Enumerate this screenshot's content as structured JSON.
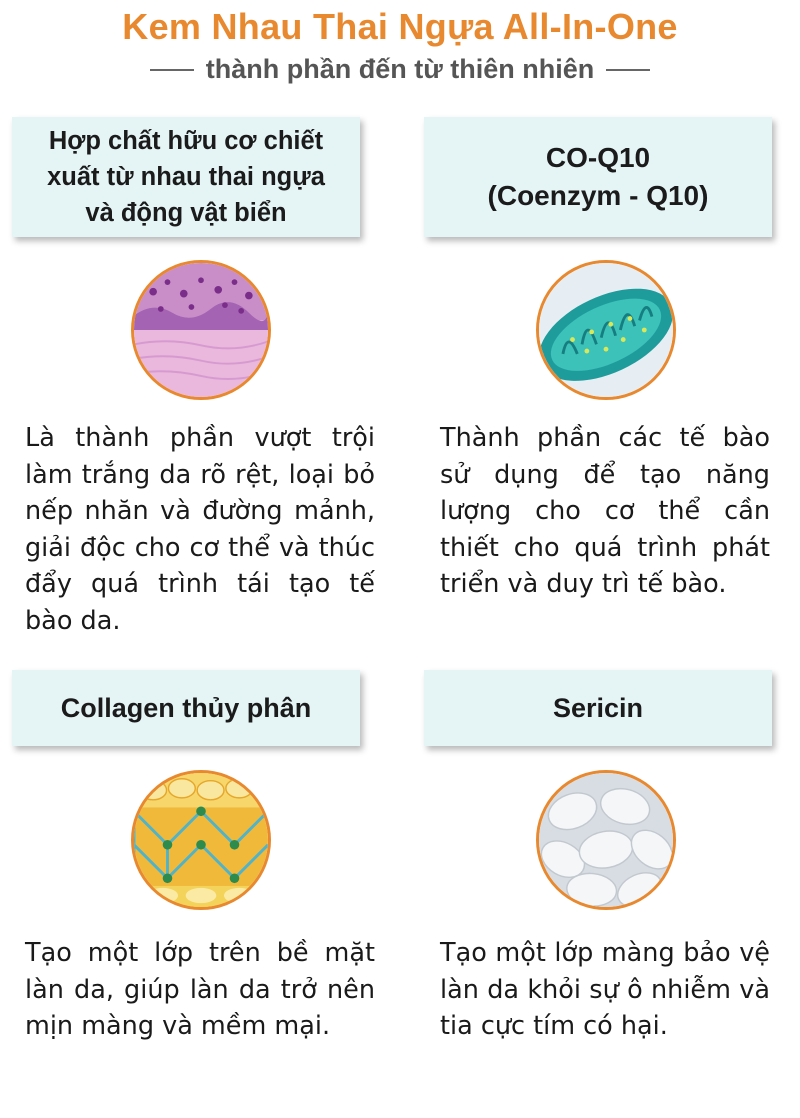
{
  "title": "Kem Nhau Thai Ngựa All-In-One",
  "subtitle": "thành phần đến từ thiên nhiên",
  "ingredients": [
    {
      "name_line1": "Hợp chất hữu cơ chiết",
      "name_line2": "xuất từ nhau thai ngựa",
      "name_line3": "và động vật biển",
      "icon": "tissue-micrograph",
      "description": "Là thành phần vượt trội làm trắng da rõ rệt, loại bỏ nếp nhăn và đường mảnh, giải độc cho cơ thể và thúc đẩy quá trình tái tạo tế bào da."
    },
    {
      "name_line1": "CO-Q10",
      "name_line2": "(Coenzym - Q10)",
      "icon": "mitochondria",
      "description": "Thành phần các tế bào sử dụng để tạo năng lượng cho cơ thể cần thiết cho quá trình phát triển và duy trì tế bào."
    },
    {
      "name_line1": "Collagen thủy phân",
      "icon": "collagen-network",
      "description": "Tạo một lớp trên bề mặt làn da, giúp làn da trở nên mịn màng và mềm mại."
    },
    {
      "name_line1": "Sericin",
      "icon": "silk-cocoons",
      "description": "Tạo một lớp màng bảo vệ làn da khỏi sự ô nhiễm và tia cực tím có hại."
    }
  ],
  "colors": {
    "accent": "#e8892f",
    "header_bg": "#e5f5f6",
    "subtitle": "#555555"
  }
}
